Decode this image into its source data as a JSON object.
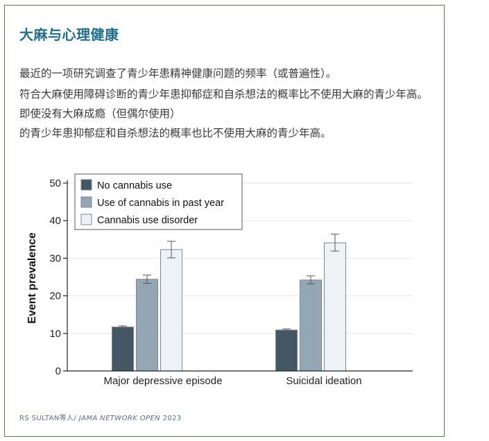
{
  "header": {
    "title": "大麻与心理健康",
    "paragraphs": [
      "最近的一项研究调查了青少年患精神健康问题的频率（或普遍性）。",
      "符合大麻使用障碍诊断的青少年患抑郁症和自杀想法的概率比不使用大麻的青少年高。",
      "即使没有大麻成瘾（但偶尔使用）",
      "的青少年患抑郁症和自杀想法的概率也比不使用大麻的青少年高。"
    ]
  },
  "source": {
    "author": "RS SULTAN等人/ ",
    "journal": "JAMA NETWORK OPEN",
    "year": " 2023"
  },
  "chart_data": {
    "type": "bar",
    "title": "",
    "xlabel": "",
    "ylabel": "Event prevalence",
    "ylim": [
      0,
      50
    ],
    "yticks": [
      0,
      10,
      20,
      30,
      40,
      50
    ],
    "grid": true,
    "legend_position": "top-left",
    "categories": [
      "Major depressive episode",
      "Suicidal ideation"
    ],
    "series": [
      {
        "name": "No cannabis use",
        "color": "#435764",
        "values": [
          11.7,
          10.9
        ],
        "err_low": [
          11.4,
          10.6
        ],
        "err_high": [
          12.0,
          11.2
        ]
      },
      {
        "name": "Use of cannabis in past year",
        "color": "#92a6b4",
        "values": [
          24.4,
          24.2
        ],
        "err_low": [
          23.3,
          23.2
        ],
        "err_high": [
          25.5,
          25.3
        ]
      },
      {
        "name": "Cannabis use disorder",
        "color": "#edf2f6",
        "values": [
          32.3,
          34.1
        ],
        "err_low": [
          30.1,
          31.9
        ],
        "err_high": [
          34.5,
          36.4
        ]
      }
    ]
  }
}
